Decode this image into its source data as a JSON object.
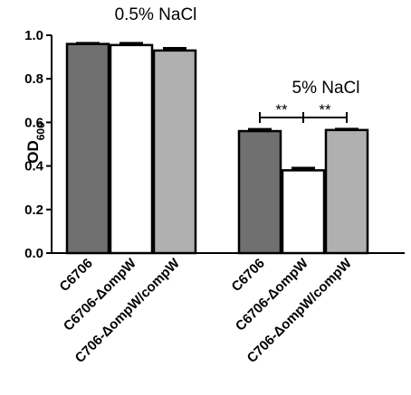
{
  "chart_data": {
    "type": "bar",
    "ylabel_main": "OD",
    "ylabel_sub": "600",
    "ylim": [
      0,
      1.0
    ],
    "yticks": [
      "0.0",
      "0.2",
      "0.4",
      "0.6",
      "0.8",
      "1.0"
    ],
    "grid": false,
    "groups": [
      {
        "label": "0.5% NaCl",
        "bars": [
          {
            "category": "C6706",
            "value": 0.96,
            "error": 0.005,
            "color": "#707070"
          },
          {
            "category": "C6706-ΔompW",
            "value": 0.955,
            "error": 0.01,
            "color": "#ffffff"
          },
          {
            "category": "C706-ΔompW/compW",
            "value": 0.93,
            "error": 0.012,
            "color": "#b0b0b0"
          }
        ]
      },
      {
        "label": "5% NaCl",
        "bars": [
          {
            "category": "C6706",
            "value": 0.56,
            "error": 0.01,
            "color": "#707070"
          },
          {
            "category": "C6706-ΔompW",
            "value": 0.38,
            "error": 0.012,
            "color": "#ffffff"
          },
          {
            "category": "C706-ΔompW/compW",
            "value": 0.565,
            "error": 0.006,
            "color": "#b0b0b0"
          }
        ]
      }
    ],
    "significance": [
      {
        "group": 1,
        "from": 0,
        "to": 1,
        "label": "**"
      },
      {
        "group": 1,
        "from": 1,
        "to": 2,
        "label": "**"
      }
    ]
  }
}
